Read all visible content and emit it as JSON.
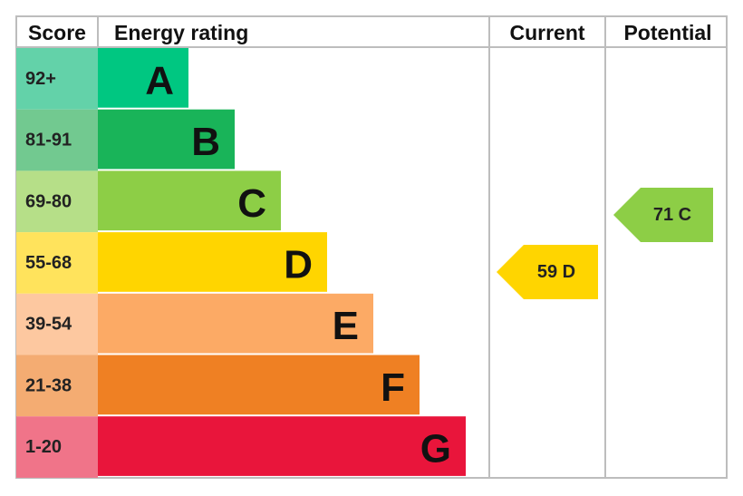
{
  "header": {
    "score": "Score",
    "rating": "Energy rating",
    "current": "Current",
    "potential": "Potential"
  },
  "bands": [
    {
      "score": "92+",
      "letter": "A",
      "color": "#00c781",
      "score_color": "#63d2a9"
    },
    {
      "score": "81-91",
      "letter": "B",
      "color": "#19b459",
      "score_color": "#72c990"
    },
    {
      "score": "69-80",
      "letter": "C",
      "color": "#8dce46",
      "score_color": "#b6df88"
    },
    {
      "score": "55-68",
      "letter": "D",
      "color": "#ffd500",
      "score_color": "#ffe35c"
    },
    {
      "score": "39-54",
      "letter": "E",
      "color": "#fcaa65",
      "score_color": "#fdc8a0"
    },
    {
      "score": "21-38",
      "letter": "F",
      "color": "#ef8023",
      "score_color": "#f4ac72"
    },
    {
      "score": "1-20",
      "letter": "G",
      "color": "#e9153b",
      "score_color": "#f07489"
    }
  ],
  "current": {
    "label": "59 D",
    "color": "#ffd500"
  },
  "potential": {
    "label": "71 C",
    "color": "#8dce46"
  }
}
